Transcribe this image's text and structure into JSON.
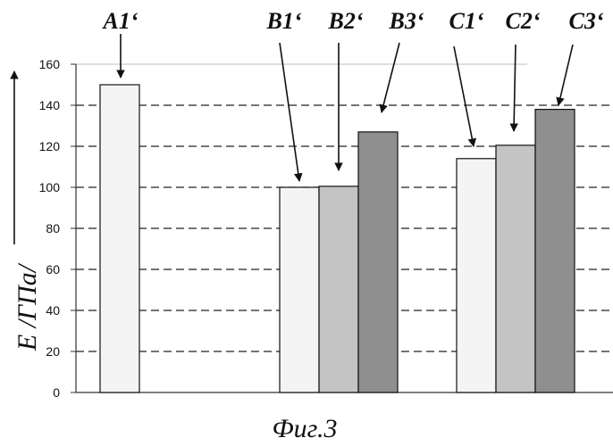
{
  "chart_data": {
    "type": "bar",
    "bars": [
      {
        "label": "A1‘",
        "value": 150,
        "fill": "#f4f4f4"
      },
      {
        "label": "B1‘",
        "value": 100,
        "fill": "#f4f4f4"
      },
      {
        "label": "B2‘",
        "value": 100.5,
        "fill": "#c4c4c4"
      },
      {
        "label": "B3‘",
        "value": 127,
        "fill": "#8f8f8f"
      },
      {
        "label": "C1‘",
        "value": 114,
        "fill": "#f4f4f4"
      },
      {
        "label": "C2‘",
        "value": 120.5,
        "fill": "#c4c4c4"
      },
      {
        "label": "C3‘",
        "value": 138,
        "fill": "#8f8f8f"
      }
    ],
    "yticks": [
      "0",
      "20",
      "40",
      "60",
      "80",
      "100",
      "120",
      "140",
      "160"
    ],
    "ylim": [
      0,
      160
    ],
    "ylabel": "E /ГПа/",
    "grid": "dashed horizontal",
    "caption": "Фиг.3"
  }
}
